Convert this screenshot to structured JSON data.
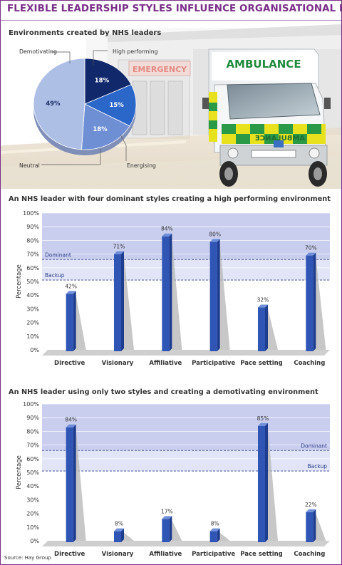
{
  "title": "FLEXIBLE LEADERSHIP STYLES INFLUENCE ORGANISATIONAL PERFORMANCE",
  "hero": {
    "pie_title": "Environments created by NHS leaders",
    "sign_text": "EMERGENCY",
    "ambulance_text": "AMBULANCE",
    "ambulance_mirror_text": "AMBULANCE"
  },
  "source": "Source: Hay Group",
  "colors": {
    "title_purple": "#7a2f88",
    "band_dark": "#c9cdee",
    "band_light": "#e2e5f7",
    "bar_blue": "#2f55b5",
    "pie_neutral": "#aebfe6",
    "pie_high": "#11286b",
    "pie_energising": "#2b66c9",
    "pie_demotivating": "#6f8fd4"
  },
  "chart_data": [
    {
      "type": "pie",
      "title": "Environments created by NHS leaders",
      "slices": [
        {
          "label": "High performing",
          "value": 18,
          "value_label": "18%"
        },
        {
          "label": "Energising",
          "value": 15,
          "value_label": "15%"
        },
        {
          "label": "Demotivating",
          "value": 18,
          "value_label": "18%"
        },
        {
          "label": "Neutral",
          "value": 49,
          "value_label": "49%"
        }
      ]
    },
    {
      "type": "bar",
      "title": "An NHS leader with four dominant styles creating a high performing environment",
      "categories": [
        "Directive",
        "Visionary",
        "Affiliative",
        "Participative",
        "Pace setting",
        "Coaching"
      ],
      "values": [
        42,
        71,
        84,
        80,
        32,
        70
      ],
      "value_labels": [
        "42%",
        "71%",
        "84%",
        "80%",
        "32%",
        "70%"
      ],
      "ylabel": "Percentage",
      "ylim": [
        0,
        100
      ],
      "yticks": [
        "0%",
        "10%",
        "20%",
        "30%",
        "40%",
        "50%",
        "60%",
        "70%",
        "80%",
        "90%",
        "100%"
      ],
      "bands": [
        {
          "label": "Dominant",
          "from": 66,
          "to": 100
        },
        {
          "label": "Backup",
          "from": 51,
          "to": 66
        }
      ],
      "band_label_side": "left"
    },
    {
      "type": "bar",
      "title": "An NHS leader using only two styles and creating a demotivating environment",
      "categories": [
        "Directive",
        "Visionary",
        "Affiliative",
        "Participative",
        "Pace setting",
        "Coaching"
      ],
      "values": [
        84,
        8,
        17,
        8,
        85,
        22
      ],
      "value_labels": [
        "84%",
        "8%",
        "17%",
        "8%",
        "85%",
        "22%"
      ],
      "ylabel": "Percentage",
      "ylim": [
        0,
        100
      ],
      "yticks": [
        "0%",
        "10%",
        "20%",
        "30%",
        "40%",
        "50%",
        "60%",
        "70%",
        "80%",
        "90%",
        "100%"
      ],
      "bands": [
        {
          "label": "Dominant",
          "from": 66,
          "to": 100
        },
        {
          "label": "Backup",
          "from": 51,
          "to": 66
        }
      ],
      "band_label_side": "right"
    }
  ]
}
